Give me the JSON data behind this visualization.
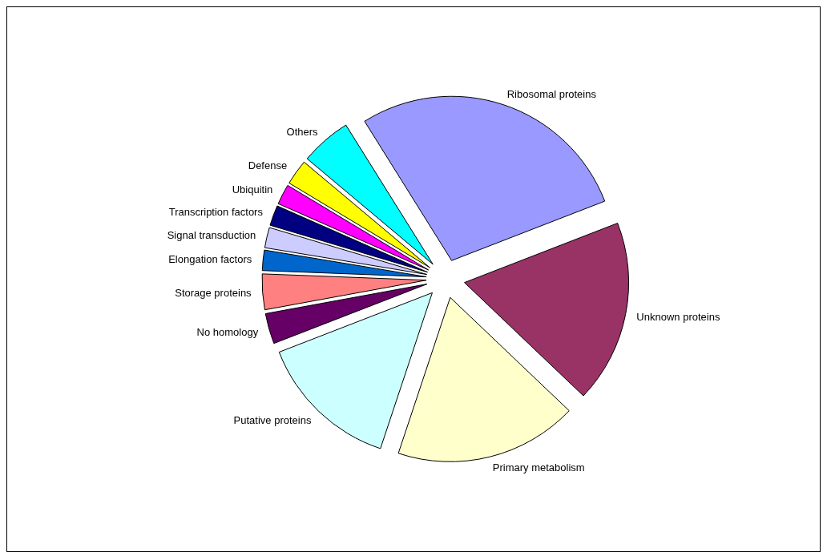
{
  "chart_data": {
    "type": "pie",
    "categories": [
      "Ribosomal proteins",
      "Unknown proteins",
      "Primary metabolism",
      "Putative proteins",
      "No homology",
      "Storage proteins",
      "Elongation factors",
      "Signal transduction",
      "Transcription factors",
      "Ubiquitin",
      "Defense",
      "Others"
    ],
    "values": [
      28,
      18,
      18,
      14,
      3,
      3.5,
      2,
      2,
      2,
      2,
      2.5,
      5
    ],
    "colors": [
      "#9999ff",
      "#993366",
      "#ffffcc",
      "#ccffff",
      "#660066",
      "#ff8080",
      "#0066cc",
      "#ccccff",
      "#000080",
      "#ff00ff",
      "#ffff00",
      "#00ffff"
    ]
  }
}
